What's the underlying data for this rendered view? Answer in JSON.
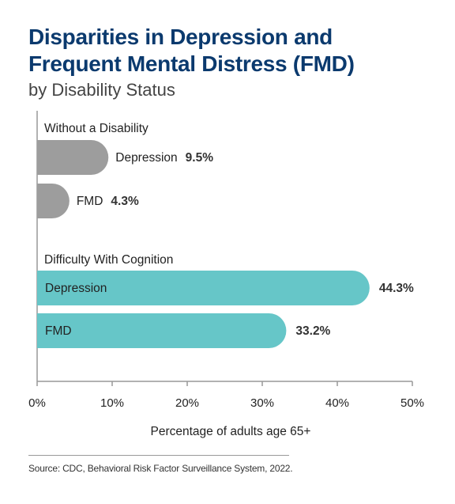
{
  "title_line1": "Disparities in Depression and",
  "title_line2": "Frequent Mental Distress (FMD)",
  "subtitle": "by Disability Status",
  "source": "Source: CDC, Behavioral Risk Factor Surveillance System, 2022.",
  "colors": {
    "title": "#0b3a6e",
    "without_disability": "#9d9d9d",
    "cognition": "#66c6c8",
    "axis": "#999999"
  },
  "chart_data": {
    "type": "bar",
    "orientation": "horizontal",
    "xlabel": "Percentage of adults age 65+",
    "xlim": [
      0,
      50
    ],
    "xticks": [
      0,
      10,
      20,
      30,
      40,
      50
    ],
    "xtick_labels": [
      "0%",
      "10%",
      "20%",
      "30%",
      "40%",
      "50%"
    ],
    "groups": [
      {
        "name": "Without a Disability",
        "color": "#9d9d9d",
        "bars": [
          {
            "label": "Depression",
            "value": 9.5,
            "value_label": "9.5%"
          },
          {
            "label": "FMD",
            "value": 4.3,
            "value_label": "4.3%"
          }
        ]
      },
      {
        "name": "Difficulty With Cognition",
        "color": "#66c6c8",
        "bars": [
          {
            "label": "Depression",
            "value": 44.3,
            "value_label": "44.3%"
          },
          {
            "label": "FMD",
            "value": 33.2,
            "value_label": "33.2%"
          }
        ]
      }
    ]
  }
}
